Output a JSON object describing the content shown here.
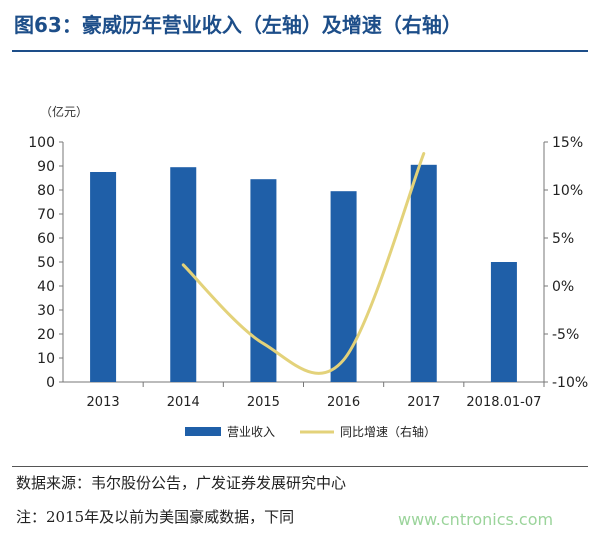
{
  "header": {
    "title": "图63：豪威历年营业收入（左轴）及增速（右轴）"
  },
  "chart_data": {
    "type": "bar",
    "unit_label": "（亿元）",
    "categories": [
      "2013",
      "2014",
      "2015",
      "2016",
      "2017",
      "2018.01-07"
    ],
    "series": [
      {
        "name": "营业收入",
        "type": "bar",
        "axis": "left",
        "color": "#1f5fa8",
        "values": [
          87.5,
          89.5,
          84.5,
          79.5,
          90.5,
          50
        ]
      },
      {
        "name": "同比增速（右轴）",
        "type": "line",
        "axis": "right",
        "color": "#e3d27a",
        "values": [
          null,
          2.2,
          -6.0,
          -7.7,
          13.8,
          null
        ]
      }
    ],
    "y_left": {
      "min": 0,
      "max": 100,
      "ticks": [
        "0",
        "10",
        "20",
        "30",
        "40",
        "50",
        "60",
        "70",
        "80",
        "90",
        "100"
      ]
    },
    "y_right": {
      "min": -10,
      "max": 15,
      "ticks": [
        "-10%",
        "-5%",
        "0%",
        "5%",
        "10%",
        "15%"
      ]
    },
    "legend_position": "bottom",
    "grid": false
  },
  "footer": {
    "source": "数据来源：韦尔股份公告，广发证券发展研究中心",
    "note": "注：2015年及以前为美国豪威数据，下同",
    "watermark": "www.cntronics.com"
  }
}
